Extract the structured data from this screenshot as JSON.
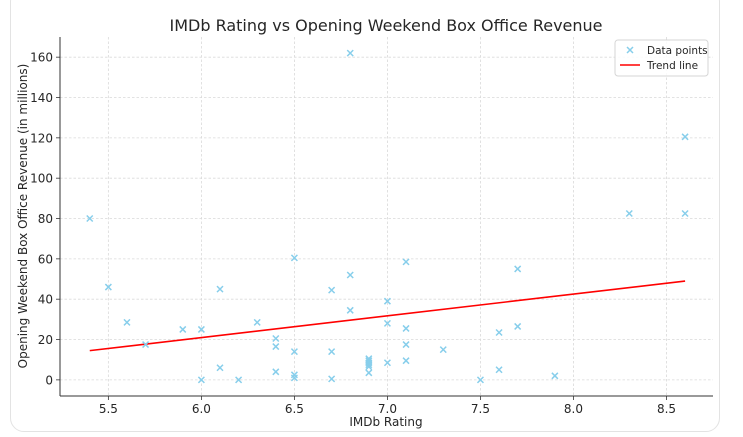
{
  "chart_data": {
    "type": "scatter",
    "title": "IMDb Rating vs Opening Weekend Box Office Revenue",
    "xlabel": "IMDb Rating",
    "ylabel": "Opening Weekend Box Office Revenue (in millions)",
    "xlim": [
      5.24,
      8.75
    ],
    "ylim": [
      -8,
      170
    ],
    "xticks": [
      "5.5",
      "6.0",
      "6.5",
      "7.0",
      "7.5",
      "8.0",
      "8.5"
    ],
    "xtick_values": [
      5.5,
      6.0,
      6.5,
      7.0,
      7.5,
      8.0,
      8.5
    ],
    "yticks": [
      "0",
      "20",
      "40",
      "60",
      "80",
      "100",
      "120",
      "140",
      "160"
    ],
    "ytick_values": [
      0,
      20,
      40,
      60,
      80,
      100,
      120,
      140,
      160
    ],
    "grid": true,
    "legend_position": "top-right",
    "series": [
      {
        "name": "Data points",
        "marker": "x",
        "color": "#87ceeb",
        "points": [
          [
            5.4,
            80
          ],
          [
            5.5,
            46
          ],
          [
            5.6,
            28.5
          ],
          [
            5.7,
            17.5
          ],
          [
            5.9,
            25
          ],
          [
            6.0,
            25
          ],
          [
            6.0,
            0
          ],
          [
            6.1,
            45
          ],
          [
            6.1,
            6
          ],
          [
            6.2,
            0
          ],
          [
            6.3,
            28.5
          ],
          [
            6.4,
            20.5
          ],
          [
            6.4,
            16.5
          ],
          [
            6.4,
            4
          ],
          [
            6.5,
            60.5
          ],
          [
            6.5,
            14
          ],
          [
            6.5,
            2.5
          ],
          [
            6.5,
            1
          ],
          [
            6.7,
            44.5
          ],
          [
            6.7,
            14
          ],
          [
            6.7,
            0.5
          ],
          [
            6.8,
            162
          ],
          [
            6.8,
            52
          ],
          [
            6.8,
            34.5
          ],
          [
            6.9,
            10.5
          ],
          [
            6.9,
            9.5
          ],
          [
            6.9,
            8.5
          ],
          [
            6.9,
            7.5
          ],
          [
            6.9,
            6.5
          ],
          [
            6.9,
            3.5
          ],
          [
            7.0,
            39
          ],
          [
            7.0,
            28
          ],
          [
            7.0,
            8.5
          ],
          [
            7.1,
            58.5
          ],
          [
            7.1,
            25.5
          ],
          [
            7.1,
            17.5
          ],
          [
            7.1,
            9.5
          ],
          [
            7.3,
            15
          ],
          [
            7.5,
            0
          ],
          [
            7.6,
            23.5
          ],
          [
            7.6,
            5
          ],
          [
            7.7,
            55
          ],
          [
            7.7,
            26.5
          ],
          [
            7.9,
            2
          ],
          [
            8.3,
            82.5
          ],
          [
            8.6,
            82.5
          ],
          [
            8.6,
            120.5
          ]
        ]
      },
      {
        "name": "Trend line",
        "type": "line",
        "color": "#ff0000",
        "points": [
          [
            5.4,
            14.5
          ],
          [
            8.6,
            49
          ]
        ]
      }
    ]
  }
}
